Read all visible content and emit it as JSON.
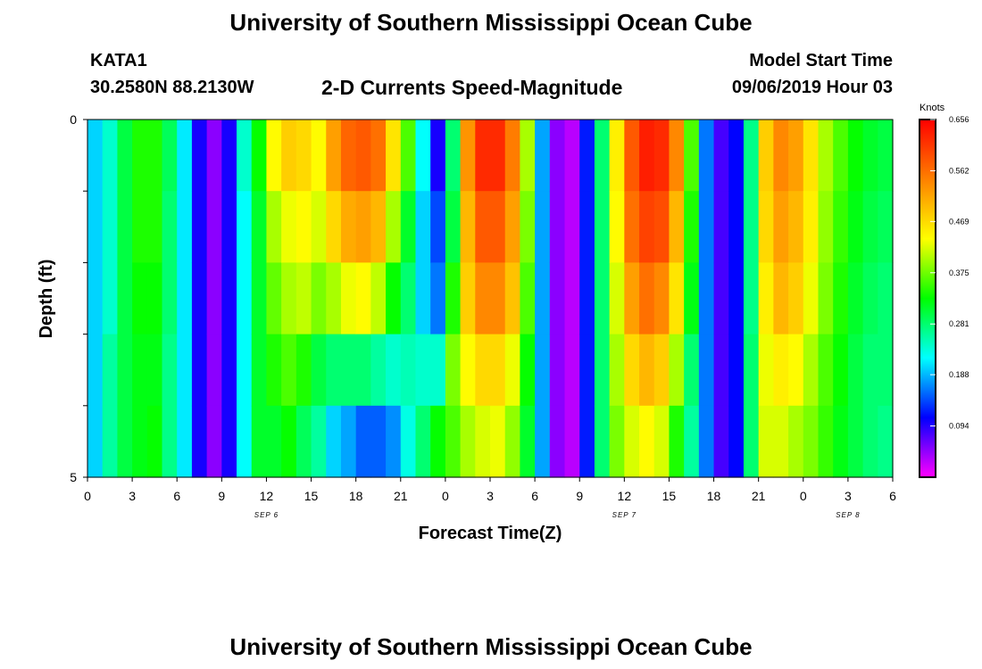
{
  "header": {
    "title": "University of Southern Mississippi Ocean Cube",
    "station": "KATA1",
    "coords": "30.2580N 88.2130W",
    "chart_title": "2-D Currents Speed-Magnitude",
    "model_label": "Model Start Time",
    "model_time": "09/06/2019 Hour 03"
  },
  "footer": {
    "title": "University of Southern Mississippi Ocean Cube"
  },
  "chart_data": {
    "type": "heatmap",
    "title": "2-D Currents Speed-Magnitude",
    "xlabel": "Forecast Time(Z)",
    "ylabel": "Depth (ft)",
    "x_ticks": [
      "0",
      "3",
      "6",
      "9",
      "12",
      "15",
      "18",
      "21",
      "0",
      "3",
      "6",
      "9",
      "12",
      "15",
      "18",
      "21",
      "0",
      "3",
      "6"
    ],
    "date_labels": [
      {
        "label": "SEP 6",
        "at_tick": 4
      },
      {
        "label": "SEP 7",
        "at_tick": 12
      },
      {
        "label": "SEP 8",
        "at_tick": 17
      }
    ],
    "y_ticks": [
      "0",
      "",
      "",
      "",
      "",
      "5"
    ],
    "ylim": [
      0,
      5
    ],
    "colorbar": {
      "unit": "Knots",
      "min": 0.0,
      "max": 0.656,
      "ticks": [
        "0.656",
        "0.562",
        "0.469",
        "0.375",
        "0.281",
        "0.188",
        "0.094"
      ],
      "colors": [
        "#ff00ff",
        "#8000ff",
        "#0000ff",
        "#0080ff",
        "#00ffff",
        "#00ff80",
        "#00ff00",
        "#80ff00",
        "#ffff00",
        "#ffc000",
        "#ff8000",
        "#ff4000",
        "#ff0000"
      ]
    },
    "depth_rows": 5,
    "hours": 54,
    "hour_step": 1,
    "values": [
      [
        0.2,
        0.2,
        0.2,
        0.2,
        0.2
      ],
      [
        0.24,
        0.24,
        0.24,
        0.26,
        0.26
      ],
      [
        0.3,
        0.3,
        0.3,
        0.3,
        0.3
      ],
      [
        0.34,
        0.34,
        0.33,
        0.32,
        0.32
      ],
      [
        0.34,
        0.34,
        0.33,
        0.32,
        0.33
      ],
      [
        0.29,
        0.28,
        0.28,
        0.27,
        0.27
      ],
      [
        0.21,
        0.21,
        0.21,
        0.21,
        0.21
      ],
      [
        0.1,
        0.1,
        0.1,
        0.1,
        0.1
      ],
      [
        0.05,
        0.05,
        0.05,
        0.05,
        0.05
      ],
      [
        0.1,
        0.1,
        0.1,
        0.1,
        0.1
      ],
      [
        0.24,
        0.22,
        0.22,
        0.22,
        0.22
      ],
      [
        0.33,
        0.31,
        0.31,
        0.31,
        0.31
      ],
      [
        0.44,
        0.4,
        0.37,
        0.34,
        0.31
      ],
      [
        0.48,
        0.43,
        0.4,
        0.36,
        0.33
      ],
      [
        0.47,
        0.44,
        0.41,
        0.34,
        0.29
      ],
      [
        0.44,
        0.42,
        0.38,
        0.3,
        0.26
      ],
      [
        0.52,
        0.47,
        0.4,
        0.28,
        0.2
      ],
      [
        0.57,
        0.51,
        0.43,
        0.28,
        0.18
      ],
      [
        0.58,
        0.52,
        0.44,
        0.28,
        0.15
      ],
      [
        0.56,
        0.5,
        0.41,
        0.26,
        0.15
      ],
      [
        0.46,
        0.4,
        0.33,
        0.24,
        0.17
      ],
      [
        0.36,
        0.31,
        0.28,
        0.25,
        0.23
      ],
      [
        0.22,
        0.2,
        0.2,
        0.24,
        0.28
      ],
      [
        0.1,
        0.14,
        0.16,
        0.24,
        0.33
      ],
      [
        0.28,
        0.3,
        0.34,
        0.38,
        0.36
      ],
      [
        0.53,
        0.5,
        0.48,
        0.44,
        0.4
      ],
      [
        0.62,
        0.58,
        0.54,
        0.47,
        0.42
      ],
      [
        0.62,
        0.58,
        0.54,
        0.47,
        0.43
      ],
      [
        0.55,
        0.52,
        0.49,
        0.43,
        0.39
      ],
      [
        0.4,
        0.38,
        0.36,
        0.33,
        0.31
      ],
      [
        0.18,
        0.18,
        0.18,
        0.18,
        0.18
      ],
      [
        0.05,
        0.05,
        0.05,
        0.05,
        0.05
      ],
      [
        0.03,
        0.03,
        0.03,
        0.03,
        0.03
      ],
      [
        0.12,
        0.12,
        0.12,
        0.12,
        0.12
      ],
      [
        0.28,
        0.28,
        0.28,
        0.28,
        0.28
      ],
      [
        0.45,
        0.44,
        0.42,
        0.4,
        0.38
      ],
      [
        0.58,
        0.56,
        0.52,
        0.47,
        0.42
      ],
      [
        0.63,
        0.6,
        0.56,
        0.5,
        0.44
      ],
      [
        0.62,
        0.59,
        0.54,
        0.48,
        0.42
      ],
      [
        0.54,
        0.5,
        0.46,
        0.4,
        0.34
      ],
      [
        0.36,
        0.34,
        0.32,
        0.28,
        0.26
      ],
      [
        0.16,
        0.16,
        0.16,
        0.16,
        0.16
      ],
      [
        0.08,
        0.08,
        0.08,
        0.08,
        0.08
      ],
      [
        0.11,
        0.11,
        0.11,
        0.11,
        0.11
      ],
      [
        0.27,
        0.27,
        0.27,
        0.28,
        0.28
      ],
      [
        0.48,
        0.47,
        0.45,
        0.43,
        0.42
      ],
      [
        0.54,
        0.52,
        0.5,
        0.45,
        0.42
      ],
      [
        0.52,
        0.5,
        0.48,
        0.44,
        0.4
      ],
      [
        0.46,
        0.45,
        0.43,
        0.4,
        0.38
      ],
      [
        0.4,
        0.39,
        0.38,
        0.36,
        0.35
      ],
      [
        0.36,
        0.35,
        0.34,
        0.33,
        0.32
      ],
      [
        0.33,
        0.32,
        0.31,
        0.3,
        0.3
      ],
      [
        0.31,
        0.3,
        0.29,
        0.28,
        0.28
      ],
      [
        0.3,
        0.29,
        0.28,
        0.28,
        0.27
      ]
    ]
  }
}
